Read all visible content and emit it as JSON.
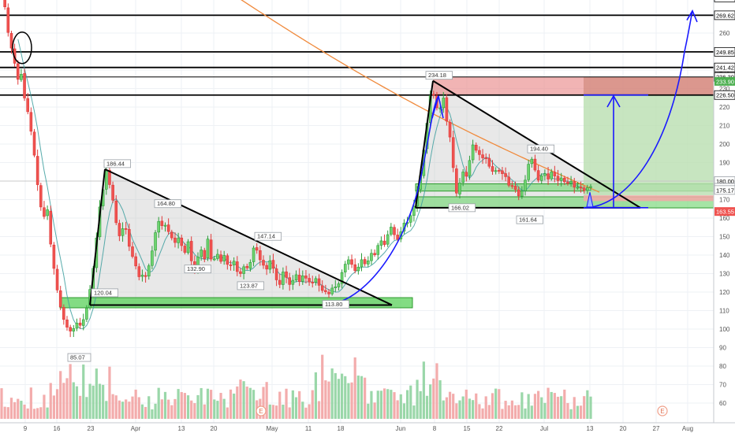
{
  "chart_data": {
    "type": "candlestick",
    "title": "",
    "xlabel": "",
    "ylabel": "",
    "ylim": [
      55,
      285
    ],
    "grid": true,
    "legend": "none",
    "x_ticks": [
      "9",
      "16",
      "23",
      "Apr",
      "13",
      "20",
      "May",
      "11",
      "18",
      "Jun",
      "8",
      "15",
      "22",
      "Jul",
      "13",
      "20",
      "27",
      "Aug"
    ],
    "y_ticks": [
      60,
      70,
      80,
      90,
      100,
      110,
      120,
      130,
      140,
      150,
      160,
      170,
      180,
      190,
      200,
      210,
      220,
      230,
      240,
      250,
      260,
      270,
      280
    ],
    "horizontal_levels": [
      {
        "value": 279.23,
        "label": "279.23"
      },
      {
        "value": 269.62,
        "label": "269.62"
      },
      {
        "value": 249.85,
        "label": "249.85"
      },
      {
        "value": 241.42,
        "label": "241.42"
      },
      {
        "value": 236.3,
        "label": "236.30"
      },
      {
        "value": 226.5,
        "label": "226.50"
      }
    ],
    "axis_tags": [
      {
        "value": 233.9,
        "label": "233.90",
        "color": "#4caf50"
      },
      {
        "value": 180.0,
        "label": "180.00",
        "color": "#ffffff"
      },
      {
        "value": 176.4,
        "label": "48:48",
        "color": "#ffffff"
      },
      {
        "value": 175.17,
        "label": "175.17",
        "color": "#ffffff"
      },
      {
        "value": 163.55,
        "label": "163.55",
        "color": "#ef5350"
      }
    ],
    "price_annotations": [
      {
        "label": "186.44"
      },
      {
        "label": "164.80"
      },
      {
        "label": "147.14"
      },
      {
        "label": "132.90"
      },
      {
        "label": "123.87"
      },
      {
        "label": "120.04"
      },
      {
        "label": "113.80"
      },
      {
        "label": "234.18"
      },
      {
        "label": "194.40"
      },
      {
        "label": "166.02"
      },
      {
        "label": "161.64"
      },
      {
        "label": "85.07"
      }
    ],
    "events": [
      "E",
      "E"
    ],
    "colors": {
      "up": "#26a69a",
      "up_fill": "#6fd36f",
      "down": "#ef5350",
      "trend": "#000000",
      "projection": "#1a1aff",
      "moving_average": "#f08a3c"
    }
  }
}
